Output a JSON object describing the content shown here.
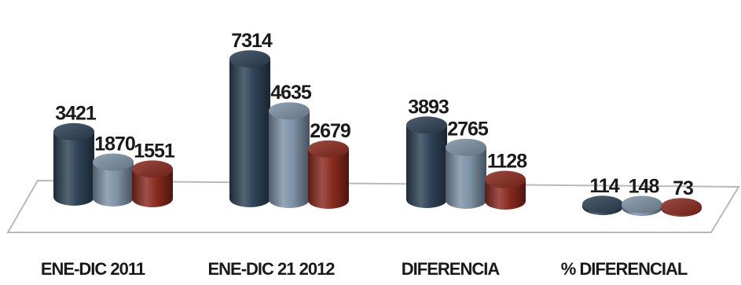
{
  "chart_data": {
    "type": "bar",
    "categories": [
      "ENE-DIC  2011",
      "ENE-DIC 21 2012",
      "DIFERENCIA",
      "% DIFERENCIAL"
    ],
    "series": [
      {
        "values": [
          3421,
          7314,
          3893,
          114
        ],
        "color": "#2e4256"
      },
      {
        "values": [
          1870,
          4635,
          2765,
          148
        ],
        "color": "#7d91a6"
      },
      {
        "values": [
          1551,
          2679,
          1128,
          73
        ],
        "color": "#8a2a1e"
      }
    ],
    "style": "3d-cylinder",
    "title": "",
    "xlabel": "",
    "ylabel": "",
    "legend": "none",
    "grid": false
  }
}
